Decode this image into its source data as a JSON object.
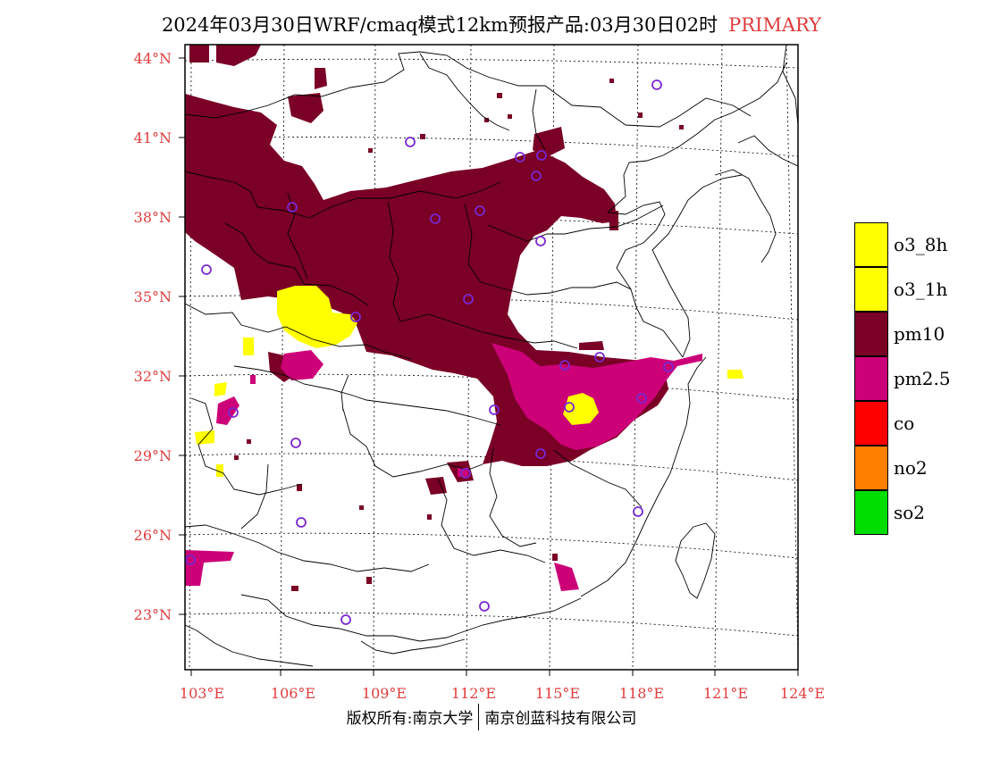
{
  "title": {
    "main": "2024年03月30日WRF/cmaq模式12km预报产品:03月30日02时",
    "tag": "PRIMARY"
  },
  "map": {
    "lat_labels": [
      "44°N",
      "41°N",
      "38°N",
      "35°N",
      "32°N",
      "29°N",
      "26°N",
      "23°N"
    ],
    "lon_labels": [
      "103°E",
      "106°E",
      "109°E",
      "112°E",
      "115°E",
      "118°E",
      "121°E",
      "124°E"
    ],
    "label_color": "#e03c3c",
    "colors": {
      "pm10": "#7a0026",
      "pm25": "#cc0077",
      "o3": "#ffff00",
      "station": "#7a28d0"
    }
  },
  "legend": {
    "items": [
      {
        "label": "o3_8h",
        "color": "#ffff00"
      },
      {
        "label": "o3_1h",
        "color": "#ffff00"
      },
      {
        "label": "pm10",
        "color": "#7a0026"
      },
      {
        "label": "pm2.5",
        "color": "#cc0077"
      },
      {
        "label": "co",
        "color": "#ff0000"
      },
      {
        "label": "no2",
        "color": "#ff7f00"
      },
      {
        "label": "so2",
        "color": "#00dd00"
      }
    ]
  },
  "footer": {
    "left": "版权所有:南京大学",
    "right": "南京创蓝科技有限公司"
  }
}
